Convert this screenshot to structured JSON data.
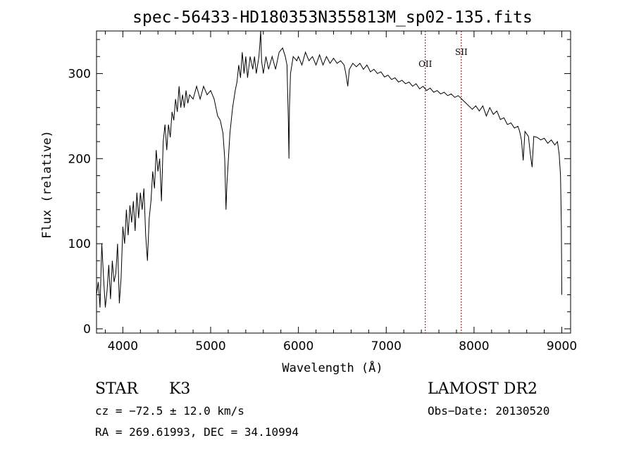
{
  "chart_data": {
    "type": "line",
    "title": "spec-56433-HD180353N355813M_sp02-135.fits",
    "xlabel": "Wavelength (Å)",
    "ylabel": "Flux (relative)",
    "xlim": [
      3700,
      9100
    ],
    "ylim": [
      -5,
      350
    ],
    "xticks": [
      4000,
      5000,
      6000,
      7000,
      8000,
      9000
    ],
    "yticks": [
      0,
      100,
      200,
      300
    ],
    "series": [
      {
        "values": [
          [
            3700,
            40
          ],
          [
            3720,
            55
          ],
          [
            3740,
            25
          ],
          [
            3760,
            100
          ],
          [
            3780,
            60
          ],
          [
            3800,
            25
          ],
          [
            3820,
            45
          ],
          [
            3840,
            75
          ],
          [
            3860,
            35
          ],
          [
            3880,
            80
          ],
          [
            3900,
            55
          ],
          [
            3920,
            65
          ],
          [
            3940,
            100
          ],
          [
            3960,
            30
          ],
          [
            3980,
            60
          ],
          [
            4000,
            120
          ],
          [
            4020,
            100
          ],
          [
            4040,
            140
          ],
          [
            4060,
            110
          ],
          [
            4080,
            145
          ],
          [
            4100,
            125
          ],
          [
            4120,
            150
          ],
          [
            4140,
            115
          ],
          [
            4160,
            160
          ],
          [
            4180,
            130
          ],
          [
            4200,
            160
          ],
          [
            4220,
            140
          ],
          [
            4240,
            165
          ],
          [
            4260,
            110
          ],
          [
            4280,
            80
          ],
          [
            4300,
            130
          ],
          [
            4320,
            150
          ],
          [
            4340,
            185
          ],
          [
            4360,
            165
          ],
          [
            4380,
            210
          ],
          [
            4400,
            185
          ],
          [
            4420,
            200
          ],
          [
            4440,
            150
          ],
          [
            4460,
            220
          ],
          [
            4480,
            240
          ],
          [
            4500,
            210
          ],
          [
            4520,
            240
          ],
          [
            4540,
            225
          ],
          [
            4560,
            255
          ],
          [
            4580,
            245
          ],
          [
            4600,
            270
          ],
          [
            4620,
            255
          ],
          [
            4640,
            285
          ],
          [
            4660,
            260
          ],
          [
            4680,
            275
          ],
          [
            4700,
            260
          ],
          [
            4720,
            280
          ],
          [
            4740,
            265
          ],
          [
            4760,
            275
          ],
          [
            4800,
            270
          ],
          [
            4840,
            285
          ],
          [
            4880,
            270
          ],
          [
            4920,
            285
          ],
          [
            4960,
            275
          ],
          [
            5000,
            280
          ],
          [
            5040,
            270
          ],
          [
            5080,
            250
          ],
          [
            5110,
            245
          ],
          [
            5140,
            230
          ],
          [
            5160,
            200
          ],
          [
            5175,
            140
          ],
          [
            5185,
            170
          ],
          [
            5200,
            195
          ],
          [
            5220,
            230
          ],
          [
            5250,
            260
          ],
          [
            5280,
            280
          ],
          [
            5300,
            290
          ],
          [
            5320,
            310
          ],
          [
            5340,
            295
          ],
          [
            5360,
            325
          ],
          [
            5380,
            300
          ],
          [
            5400,
            320
          ],
          [
            5420,
            295
          ],
          [
            5450,
            320
          ],
          [
            5480,
            305
          ],
          [
            5500,
            320
          ],
          [
            5520,
            300
          ],
          [
            5550,
            320
          ],
          [
            5570,
            350
          ],
          [
            5580,
            315
          ],
          [
            5600,
            300
          ],
          [
            5630,
            320
          ],
          [
            5660,
            305
          ],
          [
            5700,
            320
          ],
          [
            5740,
            305
          ],
          [
            5780,
            325
          ],
          [
            5820,
            330
          ],
          [
            5850,
            320
          ],
          [
            5870,
            310
          ],
          [
            5885,
            245
          ],
          [
            5892,
            200
          ],
          [
            5898,
            260
          ],
          [
            5910,
            300
          ],
          [
            5940,
            320
          ],
          [
            5980,
            315
          ],
          [
            6000,
            320
          ],
          [
            6040,
            310
          ],
          [
            6080,
            325
          ],
          [
            6120,
            315
          ],
          [
            6160,
            320
          ],
          [
            6200,
            310
          ],
          [
            6240,
            322
          ],
          [
            6280,
            310
          ],
          [
            6320,
            320
          ],
          [
            6360,
            312
          ],
          [
            6400,
            318
          ],
          [
            6440,
            312
          ],
          [
            6480,
            315
          ],
          [
            6520,
            310
          ],
          [
            6540,
            300
          ],
          [
            6562,
            285
          ],
          [
            6580,
            305
          ],
          [
            6620,
            312
          ],
          [
            6660,
            308
          ],
          [
            6700,
            312
          ],
          [
            6740,
            305
          ],
          [
            6780,
            310
          ],
          [
            6820,
            302
          ],
          [
            6860,
            305
          ],
          [
            6900,
            300
          ],
          [
            6940,
            302
          ],
          [
            6980,
            296
          ],
          [
            7020,
            298
          ],
          [
            7060,
            293
          ],
          [
            7100,
            295
          ],
          [
            7140,
            290
          ],
          [
            7180,
            292
          ],
          [
            7220,
            288
          ],
          [
            7260,
            290
          ],
          [
            7300,
            285
          ],
          [
            7340,
            288
          ],
          [
            7380,
            282
          ],
          [
            7420,
            285
          ],
          [
            7460,
            280
          ],
          [
            7500,
            283
          ],
          [
            7540,
            278
          ],
          [
            7580,
            280
          ],
          [
            7620,
            276
          ],
          [
            7660,
            278
          ],
          [
            7700,
            274
          ],
          [
            7740,
            276
          ],
          [
            7780,
            272
          ],
          [
            7820,
            274
          ],
          [
            7860,
            270
          ],
          [
            7900,
            266
          ],
          [
            7940,
            262
          ],
          [
            7980,
            258
          ],
          [
            8020,
            262
          ],
          [
            8060,
            256
          ],
          [
            8100,
            262
          ],
          [
            8140,
            250
          ],
          [
            8180,
            260
          ],
          [
            8220,
            252
          ],
          [
            8260,
            256
          ],
          [
            8300,
            246
          ],
          [
            8340,
            248
          ],
          [
            8380,
            240
          ],
          [
            8420,
            242
          ],
          [
            8460,
            236
          ],
          [
            8500,
            238
          ],
          [
            8520,
            232
          ],
          [
            8540,
            222
          ],
          [
            8560,
            198
          ],
          [
            8580,
            232
          ],
          [
            8620,
            226
          ],
          [
            8640,
            206
          ],
          [
            8662,
            190
          ],
          [
            8680,
            226
          ],
          [
            8720,
            225
          ],
          [
            8760,
            222
          ],
          [
            8800,
            224
          ],
          [
            8840,
            218
          ],
          [
            8880,
            222
          ],
          [
            8920,
            216
          ],
          [
            8950,
            220
          ],
          [
            8970,
            205
          ],
          [
            8985,
            180
          ],
          [
            8995,
            120
          ],
          [
            9000,
            40
          ]
        ]
      }
    ],
    "reference_lines": [
      {
        "label": "OII",
        "x": 7445
      },
      {
        "label": "SII",
        "x": 7855
      }
    ]
  },
  "info": {
    "object_class": "STAR",
    "subclass": "K3",
    "survey": "LAMOST DR2",
    "cz": "cz = −72.5 ± 12.0 km/s",
    "obs_date": "Obs−Date: 20130520",
    "coords": "RA = 269.61993, DEC =  34.10994"
  }
}
